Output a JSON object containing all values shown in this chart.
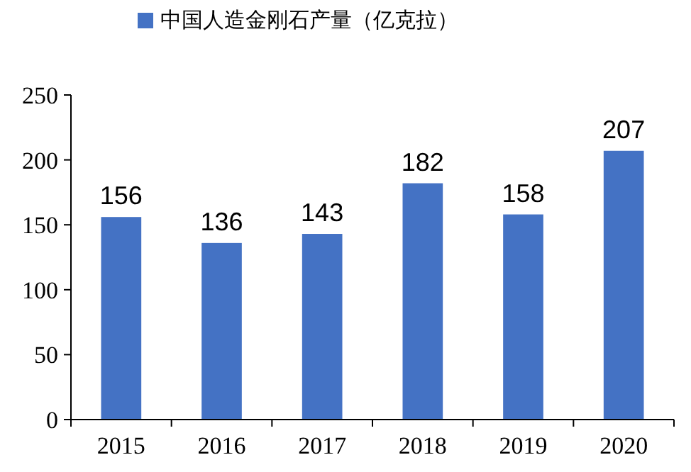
{
  "chart_data": {
    "type": "bar",
    "categories": [
      "2015",
      "2016",
      "2017",
      "2018",
      "2019",
      "2020"
    ],
    "series": [
      {
        "name": "中国人造金刚石产量（亿克拉）",
        "color": "#4472c4",
        "values": [
          156,
          136,
          143,
          182,
          158,
          207
        ]
      }
    ],
    "ylim": [
      0,
      250
    ],
    "yticks": [
      0,
      50,
      100,
      150,
      200,
      250
    ],
    "legend": "top",
    "data_labels": true
  }
}
